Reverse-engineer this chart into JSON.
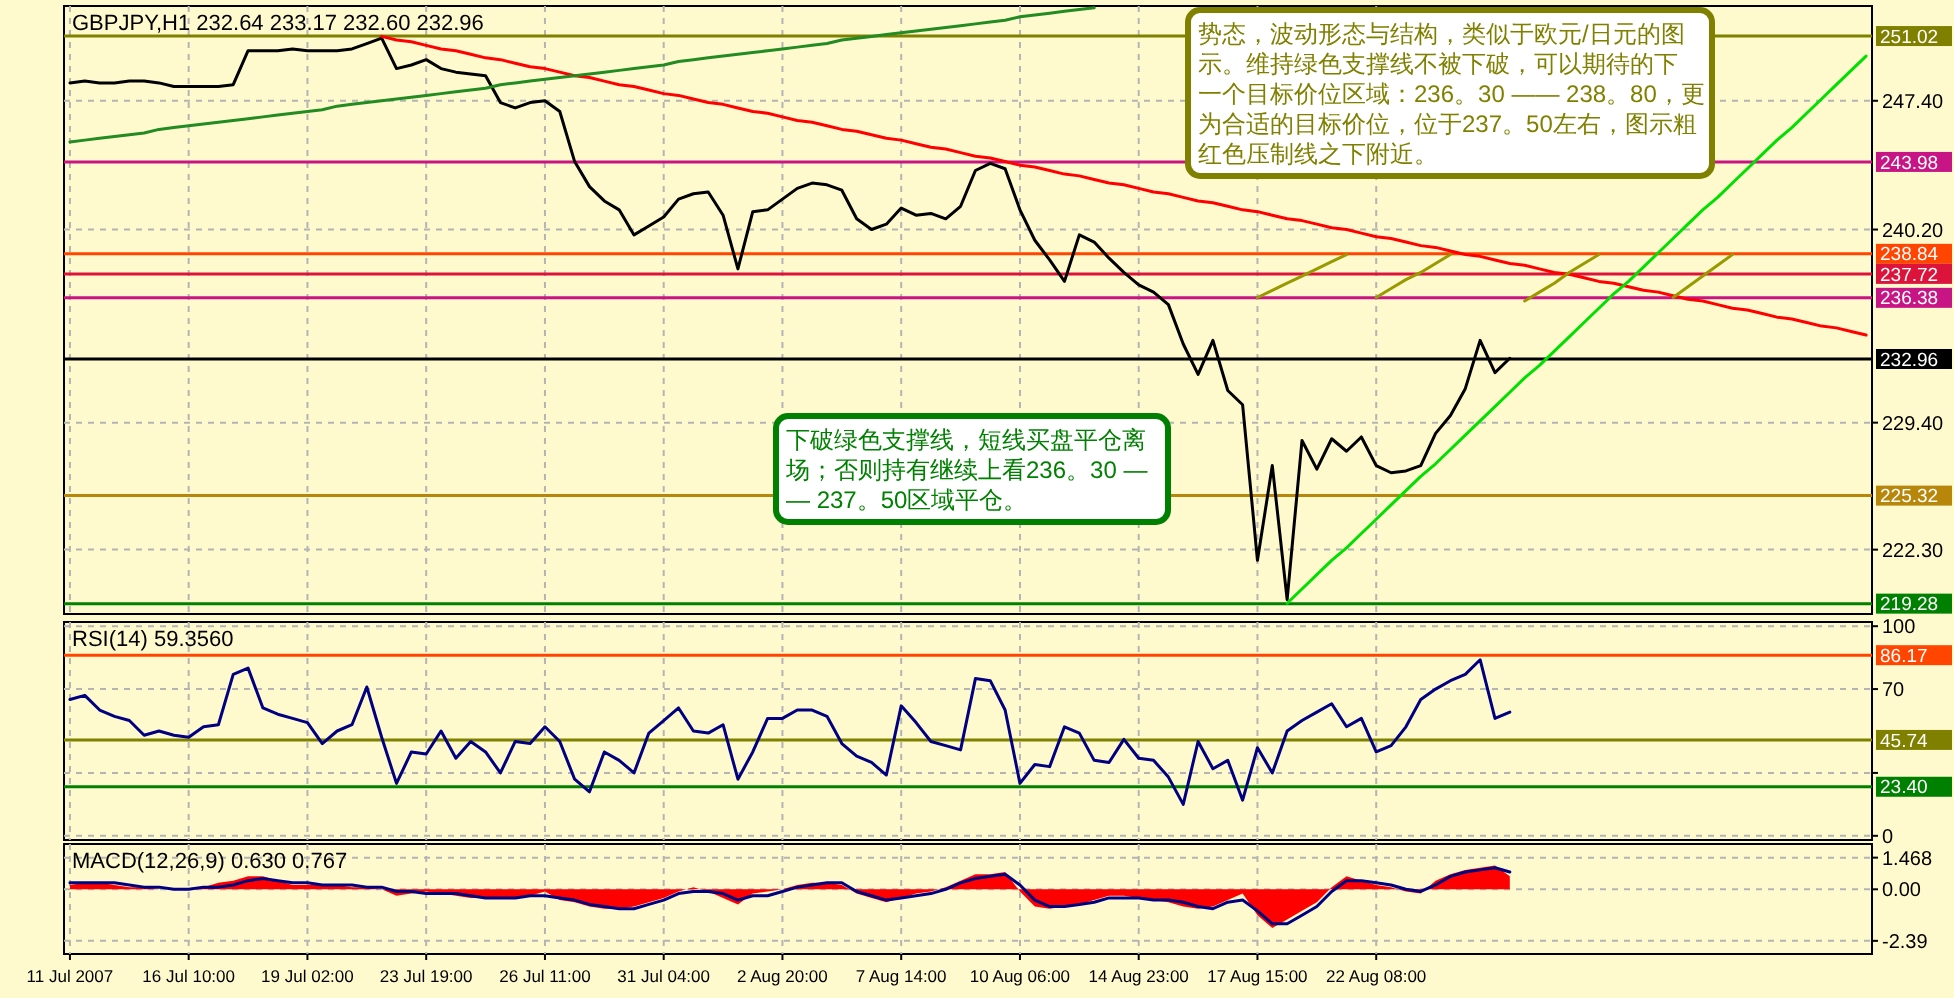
{
  "chart_data": [
    {
      "type": "line",
      "title": "GBPJPY,H1 232.64 233.17 232.60 232.96",
      "ylim": [
        218.7,
        252.7
      ],
      "grid": true,
      "legend": false,
      "tick_labels": "y",
      "categories": [
        null,
        null,
        null,
        null,
        null,
        null,
        null,
        null,
        null,
        null,
        null,
        null,
        null,
        null,
        null,
        null,
        null,
        null,
        null,
        null,
        null,
        null,
        null,
        null,
        null,
        null,
        null,
        null,
        null,
        null,
        null,
        null,
        null,
        null,
        null,
        null,
        null,
        null,
        null,
        null,
        null,
        null,
        null,
        null,
        null,
        null,
        null,
        null,
        null,
        null,
        null,
        null,
        null,
        null,
        null,
        null,
        null,
        null,
        null,
        null,
        null,
        null,
        null,
        null,
        null,
        null,
        null,
        null,
        null,
        null,
        null,
        null,
        null,
        null,
        null,
        null,
        null,
        null,
        null,
        null,
        null,
        null,
        null,
        null,
        null,
        null,
        null,
        null,
        null,
        null,
        null,
        null,
        null,
        null,
        null,
        null,
        null,
        null,
        null,
        null,
        null,
        null,
        null,
        null,
        null,
        null,
        null,
        null,
        null,
        null,
        null,
        null,
        null,
        null,
        null,
        null,
        null,
        null,
        null,
        null,
        null,
        null
      ],
      "yticks": [
        {
          "value": 247.4,
          "label": "247.40"
        },
        {
          "value": 240.2,
          "label": "240.20"
        },
        {
          "value": 229.4,
          "label": "229.40"
        },
        {
          "value": 222.3,
          "label": "222.30"
        }
      ],
      "ref_lines": [
        {
          "axis": "y",
          "value": 251.02,
          "label": "251.02",
          "color": "#808000"
        },
        {
          "axis": "y",
          "value": 243.98,
          "label": "243.98",
          "color": "#c71585"
        },
        {
          "axis": "y",
          "value": 238.84,
          "label": "238.84",
          "color": "#ff4500"
        },
        {
          "axis": "y",
          "value": 237.72,
          "label": "237.72",
          "color": "#dc143c"
        },
        {
          "axis": "y",
          "value": 236.38,
          "label": "236.38",
          "color": "#c71585"
        },
        {
          "axis": "y",
          "value": 232.96,
          "label": "232.96",
          "color": "#000000"
        },
        {
          "axis": "y",
          "value": 225.32,
          "label": "225.32",
          "color": "#b8860b"
        },
        {
          "axis": "y",
          "value": 219.28,
          "label": "219.28",
          "color": "#008000"
        }
      ],
      "annotations": [
        "势态，波动形态与结构，类似于欧元/日元的图示。维持绿色支撑线不被下破，可以期待的下一个目标价位区域：236。30 —— 238。80，更为合适的目标价位，位于237。50左右，图示粗红色压制线之下附近。",
        "下破绿色支撑线，短线买盘平仓离场；否则持有继续上看236。30 —— 237。50区域平仓。"
      ],
      "series": [
        {
          "color": "#000000",
          "values": [
            248.4,
            248.5,
            248.4,
            248.4,
            248.5,
            248.5,
            248.4,
            248.2,
            248.2,
            248.2,
            248.2,
            248.3,
            250.2,
            250.2,
            250.2,
            250.3,
            250.2,
            250.2,
            250.2,
            250.3,
            250.6,
            250.9,
            249.2,
            249.4,
            249.7,
            249.2,
            249.0,
            248.9,
            248.8,
            247.3,
            247.0,
            247.3,
            247.4,
            246.8,
            244.0,
            242.6,
            241.8,
            241.3,
            239.9,
            240.4,
            240.9,
            241.9,
            242.2,
            242.3,
            241.0,
            238.0,
            241.2,
            241.3,
            241.9,
            242.5,
            242.8,
            242.7,
            242.4,
            240.8,
            240.2,
            240.5,
            241.4,
            241.0,
            241.1,
            240.8,
            241.5,
            243.5,
            243.9,
            243.6,
            241.3,
            239.6,
            238.5,
            237.3,
            239.9,
            239.5,
            238.6,
            237.8,
            237.1,
            236.7,
            236.0,
            233.8,
            232.1,
            234.0,
            231.2,
            230.4,
            221.7,
            227.0,
            219.5,
            228.4,
            226.8,
            228.5,
            227.8,
            228.6,
            227.0,
            226.6,
            226.7,
            227.0,
            228.8,
            229.8,
            231.3,
            234.0,
            232.2,
            233.0,
            null,
            null,
            null,
            null,
            null,
            null,
            null,
            null,
            null,
            null,
            null,
            null,
            null,
            null,
            null,
            null,
            null,
            null,
            null,
            null,
            null,
            null,
            null,
            null
          ]
        },
        {
          "color": "#ff0000",
          "values": [
            null,
            null,
            null,
            null,
            null,
            null,
            null,
            null,
            null,
            null,
            null,
            null,
            null,
            null,
            null,
            null,
            null,
            null,
            null,
            null,
            null,
            251.0,
            250.8,
            250.7,
            250.5,
            250.3,
            250.2,
            250.0,
            249.8,
            249.7,
            249.5,
            249.3,
            249.2,
            249.0,
            248.8,
            248.7,
            248.5,
            248.3,
            248.2,
            248.0,
            247.8,
            247.7,
            247.5,
            247.3,
            247.2,
            247.0,
            246.8,
            246.7,
            246.5,
            246.3,
            246.2,
            246.0,
            245.8,
            245.7,
            245.5,
            245.3,
            245.2,
            245.0,
            244.8,
            244.7,
            244.5,
            244.3,
            244.2,
            244.0,
            243.8,
            243.7,
            243.5,
            243.3,
            243.2,
            243.0,
            242.8,
            242.7,
            242.5,
            242.3,
            242.2,
            242.0,
            241.8,
            241.7,
            241.5,
            241.3,
            241.2,
            241.0,
            240.8,
            240.7,
            240.5,
            240.3,
            240.2,
            240.0,
            239.8,
            239.7,
            239.5,
            239.3,
            239.2,
            239.0,
            238.8,
            238.7,
            238.5,
            238.3,
            238.2,
            238.0,
            237.8,
            237.7,
            237.5,
            237.3,
            237.2,
            237.0,
            236.8,
            236.7,
            236.5,
            236.3,
            236.2,
            236.0,
            235.8,
            235.7,
            235.5,
            235.3,
            235.2,
            235.0,
            234.8,
            234.7,
            234.5,
            234.3
          ]
        },
        {
          "color": "#228b22",
          "values": [
            245.1,
            245.2,
            245.3,
            245.4,
            245.5,
            245.6,
            245.8,
            245.9,
            246.0,
            246.1,
            246.2,
            246.3,
            246.4,
            246.5,
            246.6,
            246.7,
            246.8,
            246.9,
            247.1,
            247.2,
            247.3,
            247.4,
            247.5,
            247.6,
            247.7,
            247.8,
            247.9,
            248.0,
            248.1,
            248.3,
            248.4,
            248.5,
            248.6,
            248.7,
            248.8,
            248.9,
            249.0,
            249.1,
            249.2,
            249.3,
            249.4,
            249.6,
            249.7,
            249.8,
            249.9,
            250.0,
            250.1,
            250.2,
            250.3,
            250.4,
            250.5,
            250.6,
            250.8,
            250.9,
            251.0,
            251.1,
            251.2,
            251.3,
            251.4,
            251.5,
            251.6,
            251.7,
            251.8,
            251.9,
            252.1,
            252.2,
            252.3,
            252.4,
            252.5,
            252.6,
            null,
            null,
            null,
            null,
            null,
            null,
            null,
            null,
            null,
            null,
            null,
            null,
            null,
            null,
            null,
            null,
            null,
            null,
            null,
            null,
            null,
            null,
            null,
            null,
            null,
            null,
            null,
            null,
            null,
            null,
            null,
            null,
            null,
            null,
            null,
            null,
            null,
            null,
            null,
            null,
            null,
            null,
            null,
            null,
            null,
            null,
            null,
            null,
            null,
            null,
            null,
            null
          ]
        },
        {
          "color": "#00e000",
          "values": [
            null,
            null,
            null,
            null,
            null,
            null,
            null,
            null,
            null,
            null,
            null,
            null,
            null,
            null,
            null,
            null,
            null,
            null,
            null,
            null,
            null,
            null,
            null,
            null,
            null,
            null,
            null,
            null,
            null,
            null,
            null,
            null,
            null,
            null,
            null,
            null,
            null,
            null,
            null,
            null,
            null,
            null,
            null,
            null,
            null,
            null,
            null,
            null,
            null,
            null,
            null,
            null,
            null,
            null,
            null,
            null,
            null,
            null,
            null,
            null,
            null,
            null,
            null,
            null,
            null,
            null,
            null,
            null,
            null,
            null,
            null,
            null,
            null,
            null,
            null,
            null,
            null,
            null,
            null,
            null,
            null,
            null,
            219.3,
            220.1,
            220.9,
            221.7,
            222.4,
            223.2,
            224.0,
            224.8,
            225.6,
            226.4,
            227.1,
            227.9,
            228.7,
            229.5,
            230.3,
            231.1,
            231.9,
            232.6,
            233.4,
            234.2,
            235.0,
            235.8,
            236.6,
            237.3,
            238.1,
            238.9,
            239.7,
            240.5,
            241.3,
            242.0,
            242.8,
            243.6,
            244.4,
            245.2,
            245.9,
            246.7,
            247.5,
            248.3,
            249.1,
            249.9
          ]
        },
        {
          "color": "#999900",
          "values": [
            null,
            null,
            null,
            null,
            null,
            null,
            null,
            null,
            null,
            null,
            null,
            null,
            null,
            null,
            null,
            null,
            null,
            null,
            null,
            null,
            null,
            null,
            null,
            null,
            null,
            null,
            null,
            null,
            null,
            null,
            null,
            null,
            null,
            null,
            null,
            null,
            null,
            null,
            null,
            null,
            null,
            null,
            null,
            null,
            null,
            null,
            null,
            null,
            null,
            null,
            null,
            null,
            null,
            null,
            null,
            null,
            null,
            null,
            null,
            null,
            null,
            null,
            null,
            null,
            null,
            null,
            null,
            null,
            null,
            null,
            null,
            null,
            null,
            null,
            null,
            null,
            null,
            null,
            null,
            null,
            236.4,
            236.8,
            237.2,
            237.6,
            238.0,
            238.4,
            238.8,
            null,
            null,
            null,
            null,
            null,
            null,
            null,
            null,
            null,
            null,
            null,
            null,
            null,
            null,
            null,
            null,
            null,
            null,
            null,
            null,
            null,
            null,
            null,
            null,
            null,
            null,
            null,
            null,
            null,
            null,
            null,
            null,
            null,
            null,
            null
          ]
        },
        {
          "color": "#999900",
          "values": [
            null,
            null,
            null,
            null,
            null,
            null,
            null,
            null,
            null,
            null,
            null,
            null,
            null,
            null,
            null,
            null,
            null,
            null,
            null,
            null,
            null,
            null,
            null,
            null,
            null,
            null,
            null,
            null,
            null,
            null,
            null,
            null,
            null,
            null,
            null,
            null,
            null,
            null,
            null,
            null,
            null,
            null,
            null,
            null,
            null,
            null,
            null,
            null,
            null,
            null,
            null,
            null,
            null,
            null,
            null,
            null,
            null,
            null,
            null,
            null,
            null,
            null,
            null,
            null,
            null,
            null,
            null,
            null,
            null,
            null,
            null,
            null,
            null,
            null,
            null,
            null,
            null,
            null,
            null,
            null,
            null,
            null,
            null,
            null,
            null,
            null,
            null,
            null,
            236.4,
            236.9,
            237.4,
            237.8,
            238.3,
            238.8,
            null,
            null,
            null,
            null,
            null,
            null,
            null,
            null,
            null,
            null,
            null,
            null,
            null,
            null,
            null,
            null,
            null,
            null,
            null,
            null,
            null,
            null,
            null,
            null,
            null,
            null,
            null,
            null
          ]
        },
        {
          "color": "#999900",
          "values": [
            null,
            null,
            null,
            null,
            null,
            null,
            null,
            null,
            null,
            null,
            null,
            null,
            null,
            null,
            null,
            null,
            null,
            null,
            null,
            null,
            null,
            null,
            null,
            null,
            null,
            null,
            null,
            null,
            null,
            null,
            null,
            null,
            null,
            null,
            null,
            null,
            null,
            null,
            null,
            null,
            null,
            null,
            null,
            null,
            null,
            null,
            null,
            null,
            null,
            null,
            null,
            null,
            null,
            null,
            null,
            null,
            null,
            null,
            null,
            null,
            null,
            null,
            null,
            null,
            null,
            null,
            null,
            null,
            null,
            null,
            null,
            null,
            null,
            null,
            null,
            null,
            null,
            null,
            null,
            null,
            null,
            null,
            null,
            null,
            null,
            null,
            null,
            null,
            null,
            null,
            null,
            null,
            null,
            null,
            null,
            null,
            null,
            null,
            236.2,
            236.7,
            237.2,
            237.8,
            238.3,
            238.8,
            null,
            null,
            null,
            null,
            null,
            null,
            null,
            null,
            null,
            null,
            null,
            null,
            null,
            null,
            null,
            null,
            null,
            null
          ]
        },
        {
          "color": "#999900",
          "values": [
            null,
            null,
            null,
            null,
            null,
            null,
            null,
            null,
            null,
            null,
            null,
            null,
            null,
            null,
            null,
            null,
            null,
            null,
            null,
            null,
            null,
            null,
            null,
            null,
            null,
            null,
            null,
            null,
            null,
            null,
            null,
            null,
            null,
            null,
            null,
            null,
            null,
            null,
            null,
            null,
            null,
            null,
            null,
            null,
            null,
            null,
            null,
            null,
            null,
            null,
            null,
            null,
            null,
            null,
            null,
            null,
            null,
            null,
            null,
            null,
            null,
            null,
            null,
            null,
            null,
            null,
            null,
            null,
            null,
            null,
            null,
            null,
            null,
            null,
            null,
            null,
            null,
            null,
            null,
            null,
            null,
            null,
            null,
            null,
            null,
            null,
            null,
            null,
            null,
            null,
            null,
            null,
            null,
            null,
            null,
            null,
            null,
            null,
            null,
            null,
            null,
            null,
            null,
            null,
            null,
            null,
            null,
            null,
            236.4,
            237.0,
            237.6,
            238.2,
            238.8,
            null,
            null,
            null,
            null,
            null,
            null,
            null,
            null,
            null
          ]
        }
      ]
    },
    {
      "type": "line",
      "title": "RSI(14) 59.3560",
      "ylim": [
        -2,
        102
      ],
      "grid": true,
      "legend": false,
      "tick_labels": "y",
      "categories": [
        null,
        null,
        null,
        null,
        null,
        null,
        null,
        null,
        null,
        null,
        null,
        null,
        null,
        null,
        null,
        null,
        null,
        null,
        null,
        null,
        null,
        null,
        null,
        null,
        null,
        null,
        null,
        null,
        null,
        null,
        null,
        null,
        null,
        null,
        null,
        null,
        null,
        null,
        null,
        null,
        null,
        null,
        null,
        null,
        null,
        null,
        null,
        null,
        null,
        null,
        null,
        null,
        null,
        null,
        null,
        null,
        null,
        null,
        null,
        null,
        null,
        null,
        null,
        null,
        null,
        null,
        null,
        null,
        null,
        null,
        null,
        null,
        null,
        null,
        null,
        null,
        null,
        null,
        null,
        null,
        null,
        null,
        null,
        null,
        null,
        null,
        null,
        null,
        null,
        null,
        null,
        null,
        null,
        null,
        null,
        null,
        null,
        null,
        null,
        null,
        null,
        null,
        null,
        null,
        null,
        null,
        null,
        null,
        null,
        null,
        null,
        null,
        null,
        null,
        null,
        null,
        null,
        null,
        null,
        null,
        null,
        null
      ],
      "yticks": [
        0,
        {
          "value": 30,
          "label": null
        },
        70,
        100
      ],
      "ref_lines": [
        {
          "axis": "y",
          "value": 86.17,
          "label": "86.17",
          "color": "#ff4500"
        },
        {
          "axis": "y",
          "value": 45.74,
          "label": "45.74",
          "color": "#808000"
        },
        {
          "axis": "y",
          "value": 23.4,
          "label": "23.40",
          "color": "#008000"
        }
      ],
      "series": [
        {
          "color": "#000080",
          "values": [
            65,
            67,
            60,
            57,
            55,
            48,
            50,
            48,
            47,
            52,
            53,
            77,
            80,
            61,
            58,
            56,
            54,
            44,
            50,
            53,
            71,
            47,
            25,
            40,
            39,
            50,
            37,
            45,
            40,
            30,
            45,
            44,
            52,
            45,
            27,
            21,
            40,
            36,
            30,
            49,
            55,
            61,
            50,
            49,
            53,
            27,
            40,
            56,
            56,
            60,
            60,
            57,
            44,
            38,
            35,
            29,
            62,
            54,
            45,
            43,
            41,
            75,
            74,
            60,
            25,
            34,
            33,
            52,
            49,
            36,
            35,
            46,
            37,
            36,
            28,
            15,
            45,
            32,
            36,
            17,
            42,
            30,
            50,
            55,
            59,
            63,
            52,
            56,
            40,
            43,
            52,
            65,
            70,
            74,
            77,
            84,
            56,
            59,
            null,
            null,
            null,
            null,
            null,
            null,
            null,
            null,
            null,
            null,
            null,
            null,
            null,
            null,
            null,
            null,
            null,
            null,
            null,
            null,
            null,
            null,
            null,
            null
          ]
        }
      ]
    },
    {
      "type": "line",
      "title": "MACD(12,26,9) 0.630 0.767",
      "ylim": [
        -3.0,
        2.1
      ],
      "grid": true,
      "legend": false,
      "categories": [
        "11 Jul 2007",
        null,
        null,
        null,
        null,
        null,
        null,
        null,
        "16 Jul 10:00",
        null,
        null,
        null,
        null,
        null,
        null,
        null,
        "19 Jul 02:00",
        null,
        null,
        null,
        null,
        null,
        null,
        null,
        "23 Jul 19:00",
        null,
        null,
        null,
        null,
        null,
        null,
        null,
        "26 Jul 11:00",
        null,
        null,
        null,
        null,
        null,
        null,
        null,
        "31 Jul 04:00",
        null,
        null,
        null,
        null,
        null,
        null,
        null,
        "2 Aug 20:00",
        null,
        null,
        null,
        null,
        null,
        null,
        null,
        "7 Aug 14:00",
        null,
        null,
        null,
        null,
        null,
        null,
        null,
        "10 Aug 06:00",
        null,
        null,
        null,
        null,
        null,
        null,
        null,
        "14 Aug 23:00",
        null,
        null,
        null,
        null,
        null,
        null,
        null,
        "17 Aug 15:00",
        null,
        null,
        null,
        null,
        null,
        null,
        null,
        "22 Aug 08:00",
        null,
        null,
        null,
        null,
        null,
        null,
        null,
        null,
        null,
        null,
        null,
        null,
        null,
        null,
        null,
        null,
        null,
        null,
        null,
        null,
        null,
        null,
        null,
        null,
        null,
        null,
        null,
        null,
        null,
        null,
        null,
        null,
        null
      ],
      "yticks": [
        {
          "value": 1.468,
          "label": "1.468"
        },
        {
          "value": 0,
          "label": "0.00"
        },
        {
          "value": -2.39,
          "label": "-2.39"
        }
      ],
      "series": [
        {
          "type": "area",
          "color": "#ff0000",
          "values": [
            0.2,
            0.3,
            0.3,
            0.2,
            0.1,
            0.1,
            0.0,
            0.0,
            0.0,
            0.1,
            0.3,
            0.4,
            0.6,
            0.6,
            0.4,
            0.2,
            0.2,
            0.2,
            0.2,
            0.1,
            0.1,
            0.0,
            -0.3,
            -0.2,
            -0.1,
            -0.2,
            -0.3,
            -0.4,
            -0.4,
            -0.4,
            -0.4,
            -0.3,
            -0.1,
            -0.5,
            -0.6,
            -0.8,
            -0.9,
            -0.9,
            -0.8,
            -0.6,
            -0.4,
            -0.1,
            0.1,
            -0.1,
            -0.4,
            -0.7,
            -0.2,
            -0.1,
            0.0,
            0.2,
            0.3,
            0.3,
            0.2,
            -0.2,
            -0.4,
            -0.6,
            -0.4,
            -0.2,
            -0.1,
            0.1,
            0.4,
            0.7,
            0.7,
            0.8,
            -0.1,
            -0.8,
            -0.9,
            -0.8,
            -0.7,
            -0.5,
            -0.3,
            -0.3,
            -0.4,
            -0.5,
            -0.6,
            -0.8,
            -0.9,
            -0.8,
            -0.5,
            -0.2,
            -1.2,
            -1.8,
            -1.4,
            -1.0,
            -0.6,
            0.1,
            0.6,
            0.4,
            0.2,
            0.1,
            -0.1,
            -0.2,
            0.4,
            0.7,
            0.9,
            1.0,
            1.1,
            0.6,
            null,
            null,
            null,
            null,
            null,
            null,
            null,
            null,
            null,
            null,
            null,
            null,
            null,
            null,
            null,
            null,
            null,
            null,
            null,
            null,
            null,
            null,
            null,
            null
          ]
        },
        {
          "color": "#000080",
          "values": [
            0.3,
            0.3,
            0.3,
            0.3,
            0.2,
            0.1,
            0.1,
            0.0,
            0.0,
            0.1,
            0.1,
            0.2,
            0.4,
            0.5,
            0.4,
            0.3,
            0.3,
            0.2,
            0.2,
            0.2,
            0.1,
            0.1,
            -0.1,
            -0.1,
            -0.2,
            -0.2,
            -0.2,
            -0.3,
            -0.4,
            -0.4,
            -0.4,
            -0.3,
            -0.3,
            -0.4,
            -0.5,
            -0.7,
            -0.8,
            -0.9,
            -0.9,
            -0.7,
            -0.5,
            -0.2,
            -0.1,
            -0.1,
            -0.2,
            -0.5,
            -0.3,
            -0.3,
            -0.1,
            0.1,
            0.2,
            0.3,
            0.3,
            -0.1,
            -0.3,
            -0.5,
            -0.4,
            -0.3,
            -0.2,
            0.0,
            0.3,
            0.5,
            0.6,
            0.7,
            0.2,
            -0.5,
            -0.8,
            -0.8,
            -0.7,
            -0.6,
            -0.4,
            -0.4,
            -0.4,
            -0.5,
            -0.5,
            -0.6,
            -0.8,
            -0.9,
            -0.6,
            -0.5,
            -1.0,
            -1.6,
            -1.6,
            -1.2,
            -0.8,
            -0.1,
            0.4,
            0.4,
            0.3,
            0.2,
            0.0,
            -0.1,
            0.2,
            0.6,
            0.8,
            0.9,
            1.0,
            0.8,
            null,
            null,
            null,
            null,
            null,
            null,
            null,
            null,
            null,
            null,
            null,
            null,
            null,
            null,
            null,
            null,
            null,
            null,
            null,
            null,
            null,
            null,
            null,
            null
          ]
        }
      ]
    }
  ]
}
